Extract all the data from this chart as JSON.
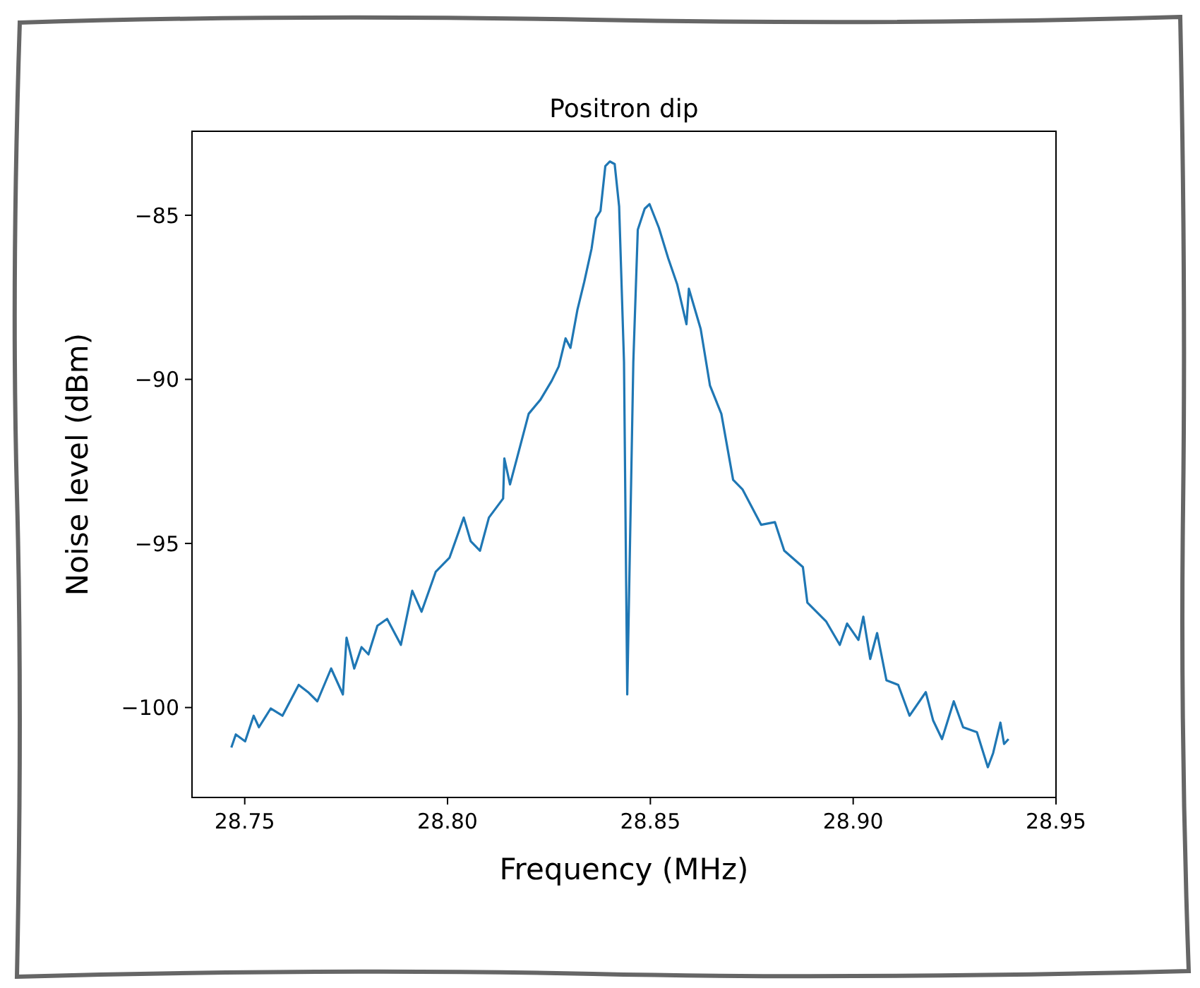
{
  "chart_data": {
    "type": "line",
    "title": "Positron dip",
    "xlabel": "Frequency (MHz)",
    "ylabel": "Noise level (dBm)",
    "series": [
      {
        "color": "#1f77b4",
        "x": [
          28.7467,
          28.7478,
          28.7501,
          28.7522,
          28.7535,
          28.7564,
          28.7593,
          28.7633,
          28.7656,
          28.7679,
          28.7713,
          28.7742,
          28.7751,
          28.777,
          28.7788,
          28.7805,
          28.7827,
          28.7851,
          28.7885,
          28.7913,
          28.7936,
          28.7971,
          28.8005,
          28.804,
          28.8057,
          28.808,
          28.8102,
          28.8137,
          28.814,
          28.8154,
          28.8171,
          28.82,
          28.8229,
          28.8257,
          28.8274,
          28.8291,
          28.8303,
          28.832,
          28.8337,
          28.8355,
          28.8366,
          28.8377,
          28.8389,
          28.84,
          28.8412,
          28.8423,
          28.8435,
          28.8443,
          28.8458,
          28.8469,
          28.8486,
          28.8498,
          28.8521,
          28.8544,
          28.8566,
          28.8589,
          28.8595,
          28.8624,
          28.8647,
          28.8675,
          28.8704,
          28.8727,
          28.8773,
          28.8807,
          28.883,
          28.8876,
          28.8887,
          28.8933,
          28.8967,
          28.8985,
          28.9013,
          28.9025,
          28.9042,
          28.9059,
          28.9082,
          28.9111,
          28.9139,
          28.9179,
          28.9197,
          28.9219,
          28.9248,
          28.9271,
          28.9305,
          28.9332,
          28.9345,
          28.9363,
          28.9372,
          28.9383
        ],
        "values": [
          -101.22,
          -100.82,
          -101.03,
          -100.25,
          -100.6,
          -100.03,
          -100.25,
          -99.31,
          -99.53,
          -99.81,
          -98.81,
          -99.6,
          -97.87,
          -98.81,
          -98.16,
          -98.38,
          -97.51,
          -97.3,
          -98.09,
          -96.44,
          -97.08,
          -95.86,
          -95.43,
          -94.21,
          -94.93,
          -95.22,
          -94.21,
          -93.63,
          -92.41,
          -93.2,
          -92.41,
          -91.05,
          -90.62,
          -90.04,
          -89.61,
          -88.75,
          -89.04,
          -87.89,
          -87.03,
          -86.02,
          -85.09,
          -84.87,
          -83.5,
          -83.36,
          -83.44,
          -84.73,
          -89.47,
          -99.6,
          -89.47,
          -85.44,
          -84.8,
          -84.66,
          -85.38,
          -86.31,
          -87.1,
          -88.32,
          -87.24,
          -88.46,
          -90.19,
          -91.05,
          -93.06,
          -93.35,
          -94.43,
          -94.35,
          -95.22,
          -95.72,
          -96.8,
          -97.37,
          -98.09,
          -97.44,
          -97.94,
          -97.23,
          -98.52,
          -97.73,
          -99.17,
          -99.31,
          -100.25,
          -99.53,
          -100.39,
          -100.96,
          -99.81,
          -100.6,
          -100.75,
          -101.82,
          -101.39,
          -100.46,
          -101.11,
          -100.96
        ]
      }
    ],
    "xlim": [
      28.737,
      28.95
    ],
    "ylim": [
      -102.74,
      -82.44
    ],
    "xticks": [
      28.75,
      {
        "value": 28.8,
        "label": "28.80"
      },
      28.85,
      {
        "value": 28.9,
        "label": "28.90"
      },
      28.95
    ],
    "yticks": [
      {
        "value": -85,
        "label": "−85"
      },
      {
        "value": -90,
        "label": "−90"
      },
      {
        "value": -95,
        "label": "−95"
      },
      {
        "value": -100,
        "label": "−100"
      }
    ],
    "grid": false
  }
}
